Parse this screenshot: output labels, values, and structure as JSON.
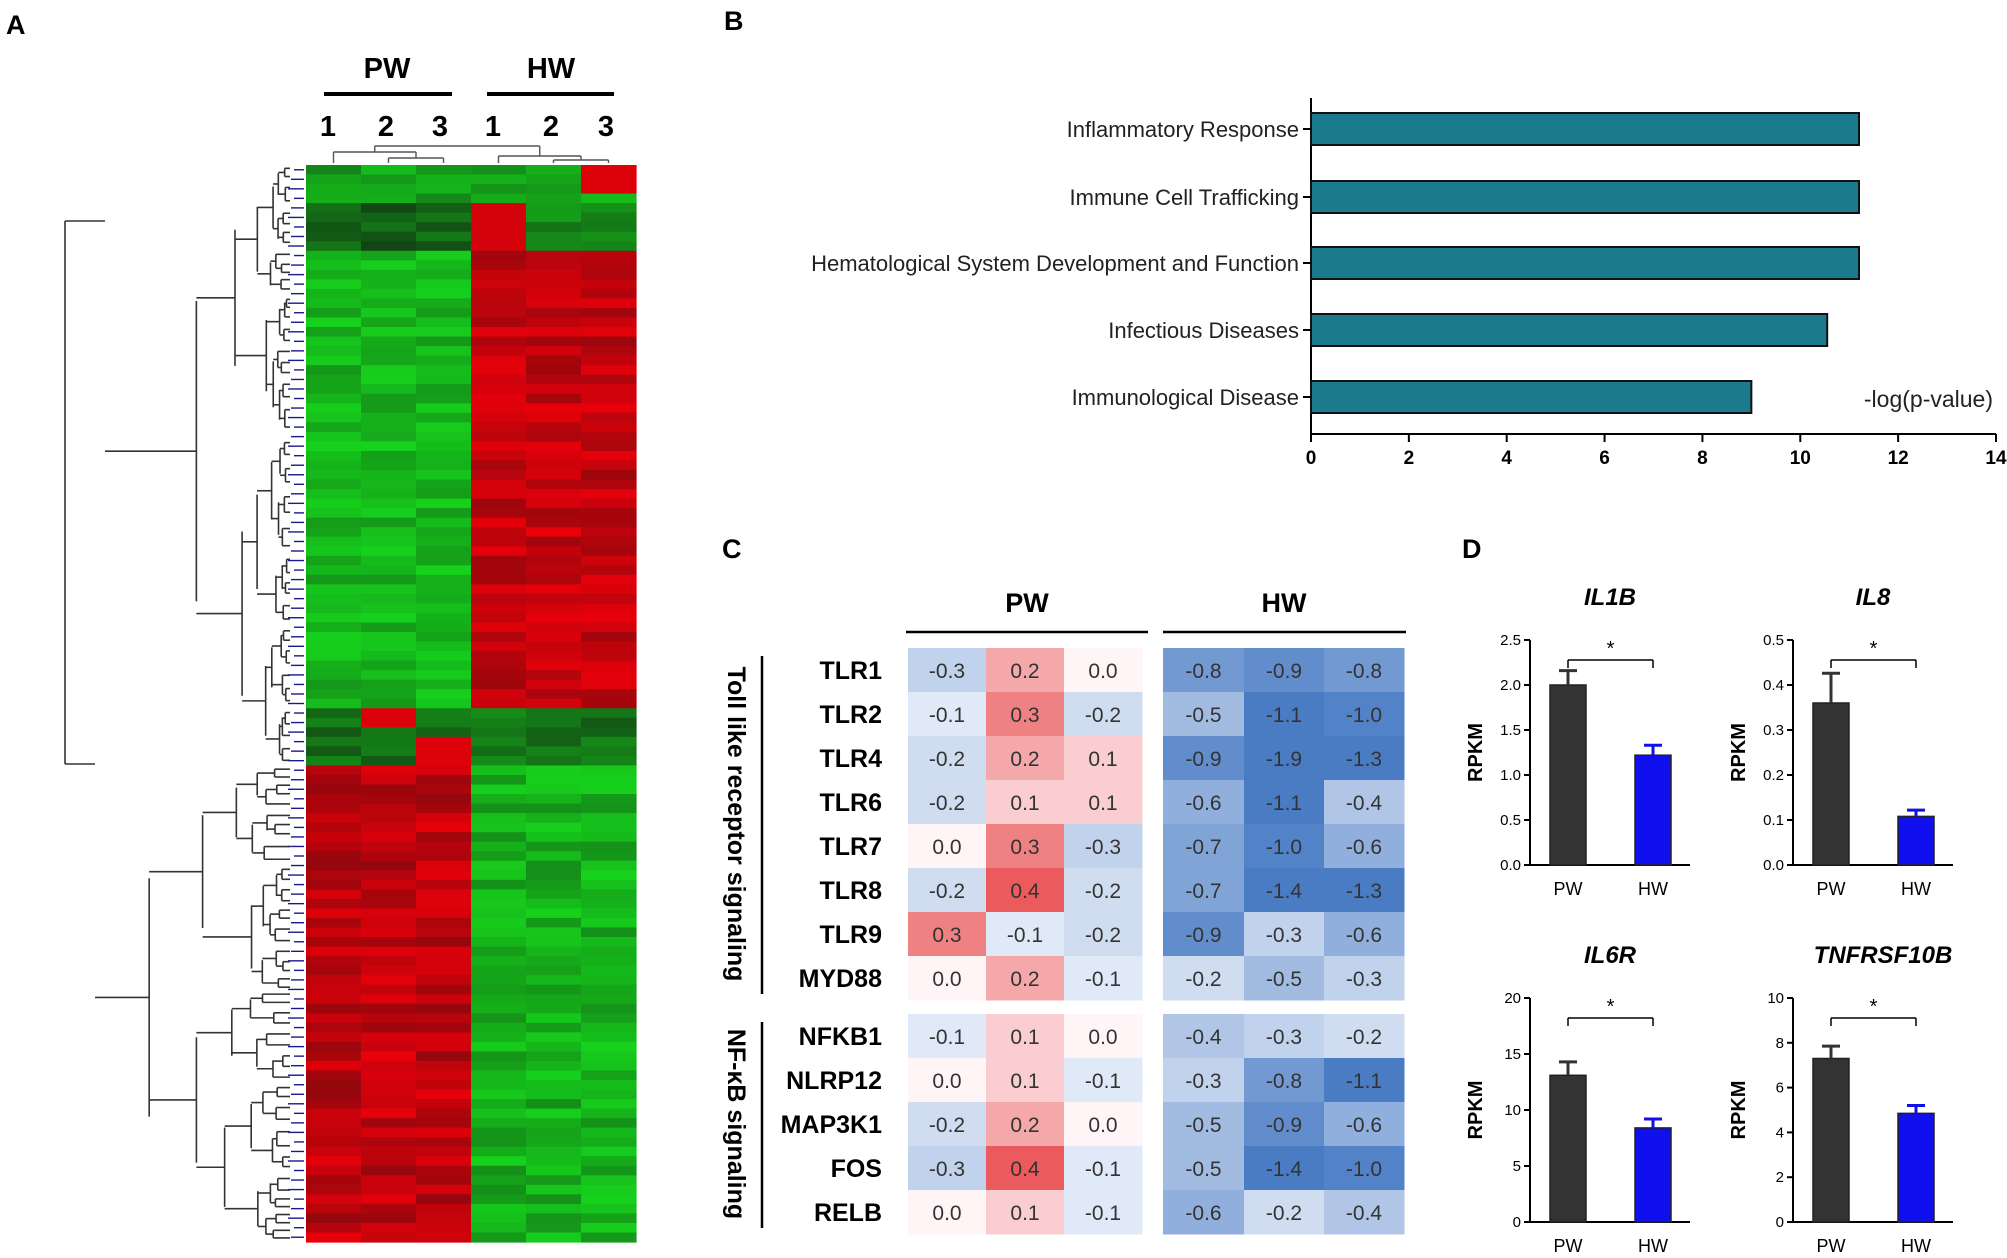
{
  "panel_letters": [
    "A",
    "B",
    "C",
    "D"
  ],
  "chart_data": [
    {
      "panel": "A",
      "type": "heatmap",
      "group_labels": [
        "PW",
        "HW"
      ],
      "sample_labels": [
        "1",
        "2",
        "3",
        "1",
        "2",
        "3"
      ],
      "clusters": [
        {
          "rows": 4,
          "pattern": "PW green, HW mostly green with red in HW3"
        },
        {
          "rows": 5,
          "pattern": "PW dark, HW1 red"
        },
        {
          "rows": 48,
          "pattern": "PW green, HW red"
        },
        {
          "rows": 6,
          "pattern": "mixed dark green, red in PW2 and PW3"
        },
        {
          "rows": 50,
          "pattern": "PW red, HW green"
        }
      ],
      "colors": {
        "up": "#e8000a",
        "down": "#16d21c",
        "neutral": "#111111"
      },
      "dendrogram_color": "#1a1a8c"
    },
    {
      "panel": "B",
      "type": "bar",
      "orientation": "horizontal",
      "categories": [
        "Inflammatory Response",
        "Immune Cell Trafficking",
        "Hematological System Development and Function",
        "Infectious Diseases",
        "Immunological Disease"
      ],
      "values": [
        11.2,
        11.2,
        11.2,
        10.55,
        9.0
      ],
      "xlabel": "-log(p-value)",
      "xlim": [
        0,
        14
      ],
      "xticks": [
        "0",
        "2",
        "4",
        "6",
        "8",
        "10",
        "12",
        "14"
      ],
      "bar_color": "#1b7a8c"
    },
    {
      "panel": "C",
      "type": "heatmap",
      "group_labels": [
        "PW",
        "HW"
      ],
      "sections": [
        {
          "label": "Toll like receptor signaling",
          "genes": [
            "TLR1",
            "TLR2",
            "TLR4",
            "TLR6",
            "TLR7",
            "TLR8",
            "TLR9",
            "MYD88"
          ],
          "values": [
            [
              "-0.3",
              "0.2",
              "0.0",
              "-0.8",
              "-0.9",
              "-0.8"
            ],
            [
              "-0.1",
              "0.3",
              "-0.2",
              "-0.5",
              "-1.1",
              "-1.0"
            ],
            [
              "-0.2",
              "0.2",
              "0.1",
              "-0.9",
              "-1.9",
              "-1.3"
            ],
            [
              "-0.2",
              "0.1",
              "0.1",
              "-0.6",
              "-1.1",
              "-0.4"
            ],
            [
              "0.0",
              "0.3",
              "-0.3",
              "-0.7",
              "-1.0",
              "-0.6"
            ],
            [
              "-0.2",
              "0.4",
              "-0.2",
              "-0.7",
              "-1.4",
              "-1.3"
            ],
            [
              "0.3",
              "-0.1",
              "-0.2",
              "-0.9",
              "-0.3",
              "-0.6"
            ],
            [
              "0.0",
              "0.2",
              "-0.1",
              "-0.2",
              "-0.5",
              "-0.3"
            ]
          ]
        },
        {
          "label": "NF-κB signaling",
          "genes": [
            "NFKB1",
            "NLRP12",
            "MAP3K1",
            "FOS",
            "RELB"
          ],
          "values": [
            [
              "-0.1",
              "0.1",
              "0.0",
              "-0.4",
              "-0.3",
              "-0.2"
            ],
            [
              "0.0",
              "0.1",
              "-0.1",
              "-0.3",
              "-0.8",
              "-1.1"
            ],
            [
              "-0.2",
              "0.2",
              "0.0",
              "-0.5",
              "-0.9",
              "-0.6"
            ],
            [
              "-0.3",
              "0.4",
              "-0.1",
              "-0.5",
              "-1.4",
              "-1.0"
            ],
            [
              "0.0",
              "0.1",
              "-0.1",
              "-0.6",
              "-0.2",
              "-0.4"
            ]
          ]
        }
      ],
      "colors": {
        "positive": "#e8474a",
        "negative": "#4a7cc4",
        "zero": "#ffffff"
      }
    },
    {
      "panel": "D",
      "type": "bar",
      "title": "IL1B",
      "categories": [
        "PW",
        "HW"
      ],
      "values": [
        2.0,
        1.22
      ],
      "errors": [
        0.16,
        0.11
      ],
      "ylabel": "RPKM",
      "ylim": [
        0,
        2.5
      ],
      "yticks": [
        "0.0",
        "0.5",
        "1.0",
        "1.5",
        "2.0",
        "2.5"
      ],
      "significance": "*",
      "colors": [
        "#333333",
        "#1010ee"
      ]
    },
    {
      "panel": "D",
      "type": "bar",
      "title": "IL8",
      "categories": [
        "PW",
        "HW"
      ],
      "values": [
        0.36,
        0.108
      ],
      "errors": [
        0.066,
        0.014
      ],
      "ylabel": "RPKM",
      "ylim": [
        0,
        0.5
      ],
      "yticks": [
        "0.0",
        "0.1",
        "0.2",
        "0.3",
        "0.4",
        "0.5"
      ],
      "significance": "*",
      "colors": [
        "#333333",
        "#1010ee"
      ]
    },
    {
      "panel": "D",
      "type": "bar",
      "title": "IL6R",
      "categories": [
        "PW",
        "HW"
      ],
      "values": [
        13.1,
        8.4
      ],
      "errors": [
        1.2,
        0.8
      ],
      "ylabel": "RPKM",
      "ylim": [
        0,
        20
      ],
      "yticks": [
        "0",
        "5",
        "10",
        "15",
        "20"
      ],
      "significance": "*",
      "colors": [
        "#333333",
        "#1010ee"
      ]
    },
    {
      "panel": "D",
      "type": "bar",
      "title": "TNFRSF10B",
      "categories": [
        "PW",
        "HW"
      ],
      "values": [
        7.3,
        4.85
      ],
      "errors": [
        0.55,
        0.35
      ],
      "ylabel": "RPKM",
      "ylim": [
        0,
        10
      ],
      "yticks": [
        "0",
        "2",
        "4",
        "6",
        "8",
        "10"
      ],
      "significance": "*",
      "colors": [
        "#333333",
        "#1010ee"
      ]
    }
  ]
}
